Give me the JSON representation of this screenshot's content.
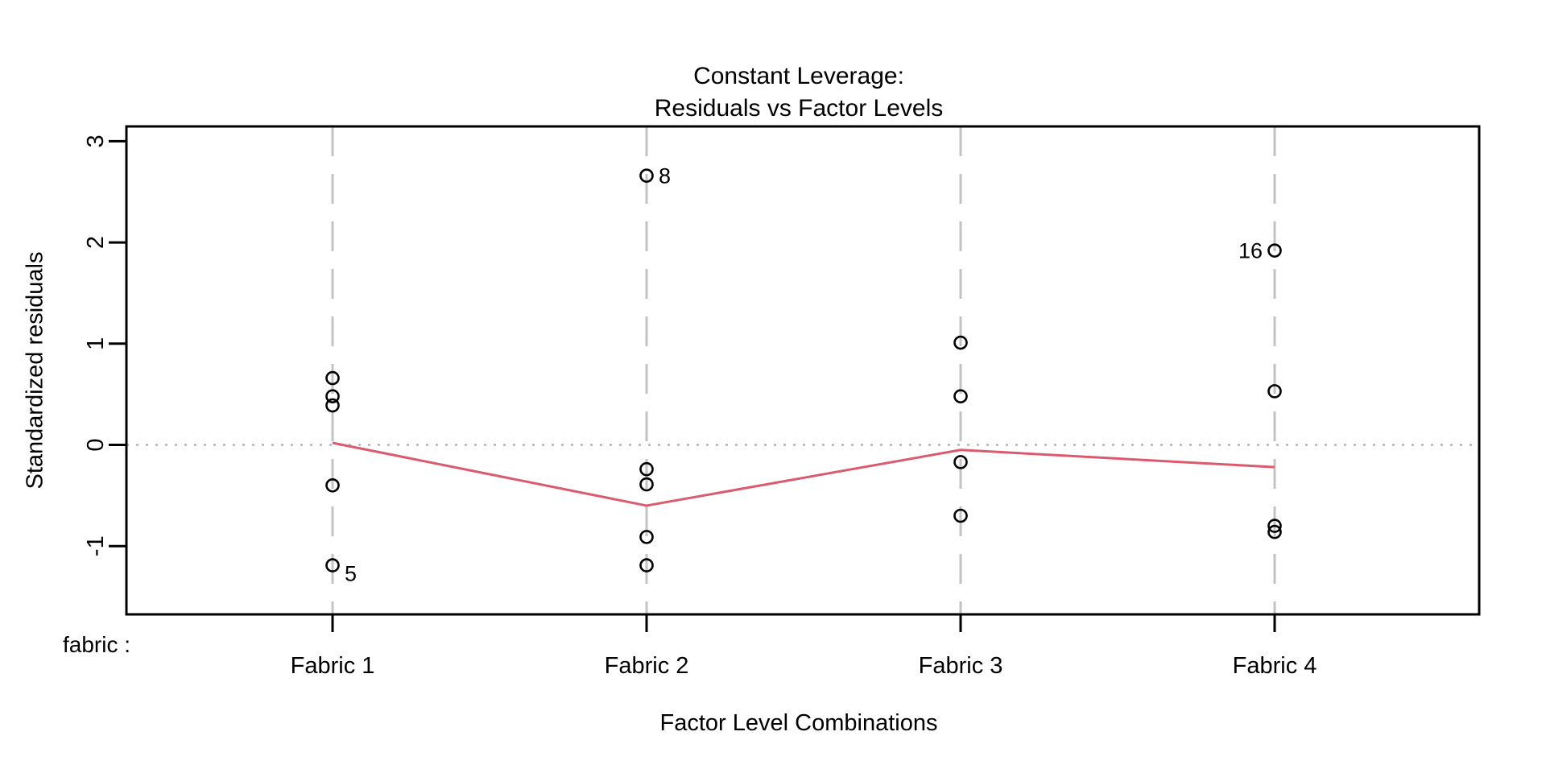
{
  "chart_data": {
    "type": "scatter",
    "title_lines": [
      "Constant Leverage:",
      "Residuals vs Factor Levels"
    ],
    "xlabel": "Factor Level Combinations",
    "ylabel": "Standardized residuals",
    "factor_axis_prefix": "fabric :",
    "categories": [
      "Fabric 1",
      "Fabric 2",
      "Fabric 3",
      "Fabric 4"
    ],
    "y_ticks": [
      "3",
      "2",
      "1",
      "0",
      "-1"
    ],
    "y_tick_values": [
      3,
      2,
      1,
      0,
      -1
    ],
    "ylim": [
      -1.67,
      3.15
    ],
    "grid": "dashed vertical separators between factor levels, dotted horizontal line at 0",
    "legend": "none",
    "groups": [
      {
        "category": "Fabric 1",
        "points": [
          0.66,
          0.48,
          0.39,
          -0.4,
          -1.19
        ],
        "labeled_points": [
          {
            "value": -1.19,
            "label": "5",
            "side": "right",
            "dy": 10
          }
        ]
      },
      {
        "category": "Fabric 2",
        "points": [
          2.66,
          -0.24,
          -0.39,
          -0.91,
          -1.19
        ],
        "labeled_points": [
          {
            "value": 2.66,
            "label": "8",
            "side": "right",
            "dy": 0
          }
        ]
      },
      {
        "category": "Fabric 3",
        "points": [
          1.01,
          0.48,
          -0.17,
          -0.7
        ],
        "labeled_points": []
      },
      {
        "category": "Fabric 4",
        "points": [
          1.92,
          0.53,
          -0.8,
          -0.86
        ],
        "labeled_points": [
          {
            "value": 1.92,
            "label": "16",
            "side": "left",
            "dy": 0
          }
        ]
      }
    ],
    "mean_line_values": [
      0.02,
      -0.6,
      -0.05,
      -0.22
    ],
    "separator_positions": [
      0.5,
      1.5,
      2.5,
      3.5,
      4.5
    ],
    "zero_line_value": 0,
    "colors": {
      "points": "#000000",
      "mean_line": "#dc5a6e",
      "separators": "#c3c3c3",
      "zero_line": "#bfbfbf",
      "axis": "#000000",
      "text": "#000000",
      "background": "#ffffff"
    }
  }
}
